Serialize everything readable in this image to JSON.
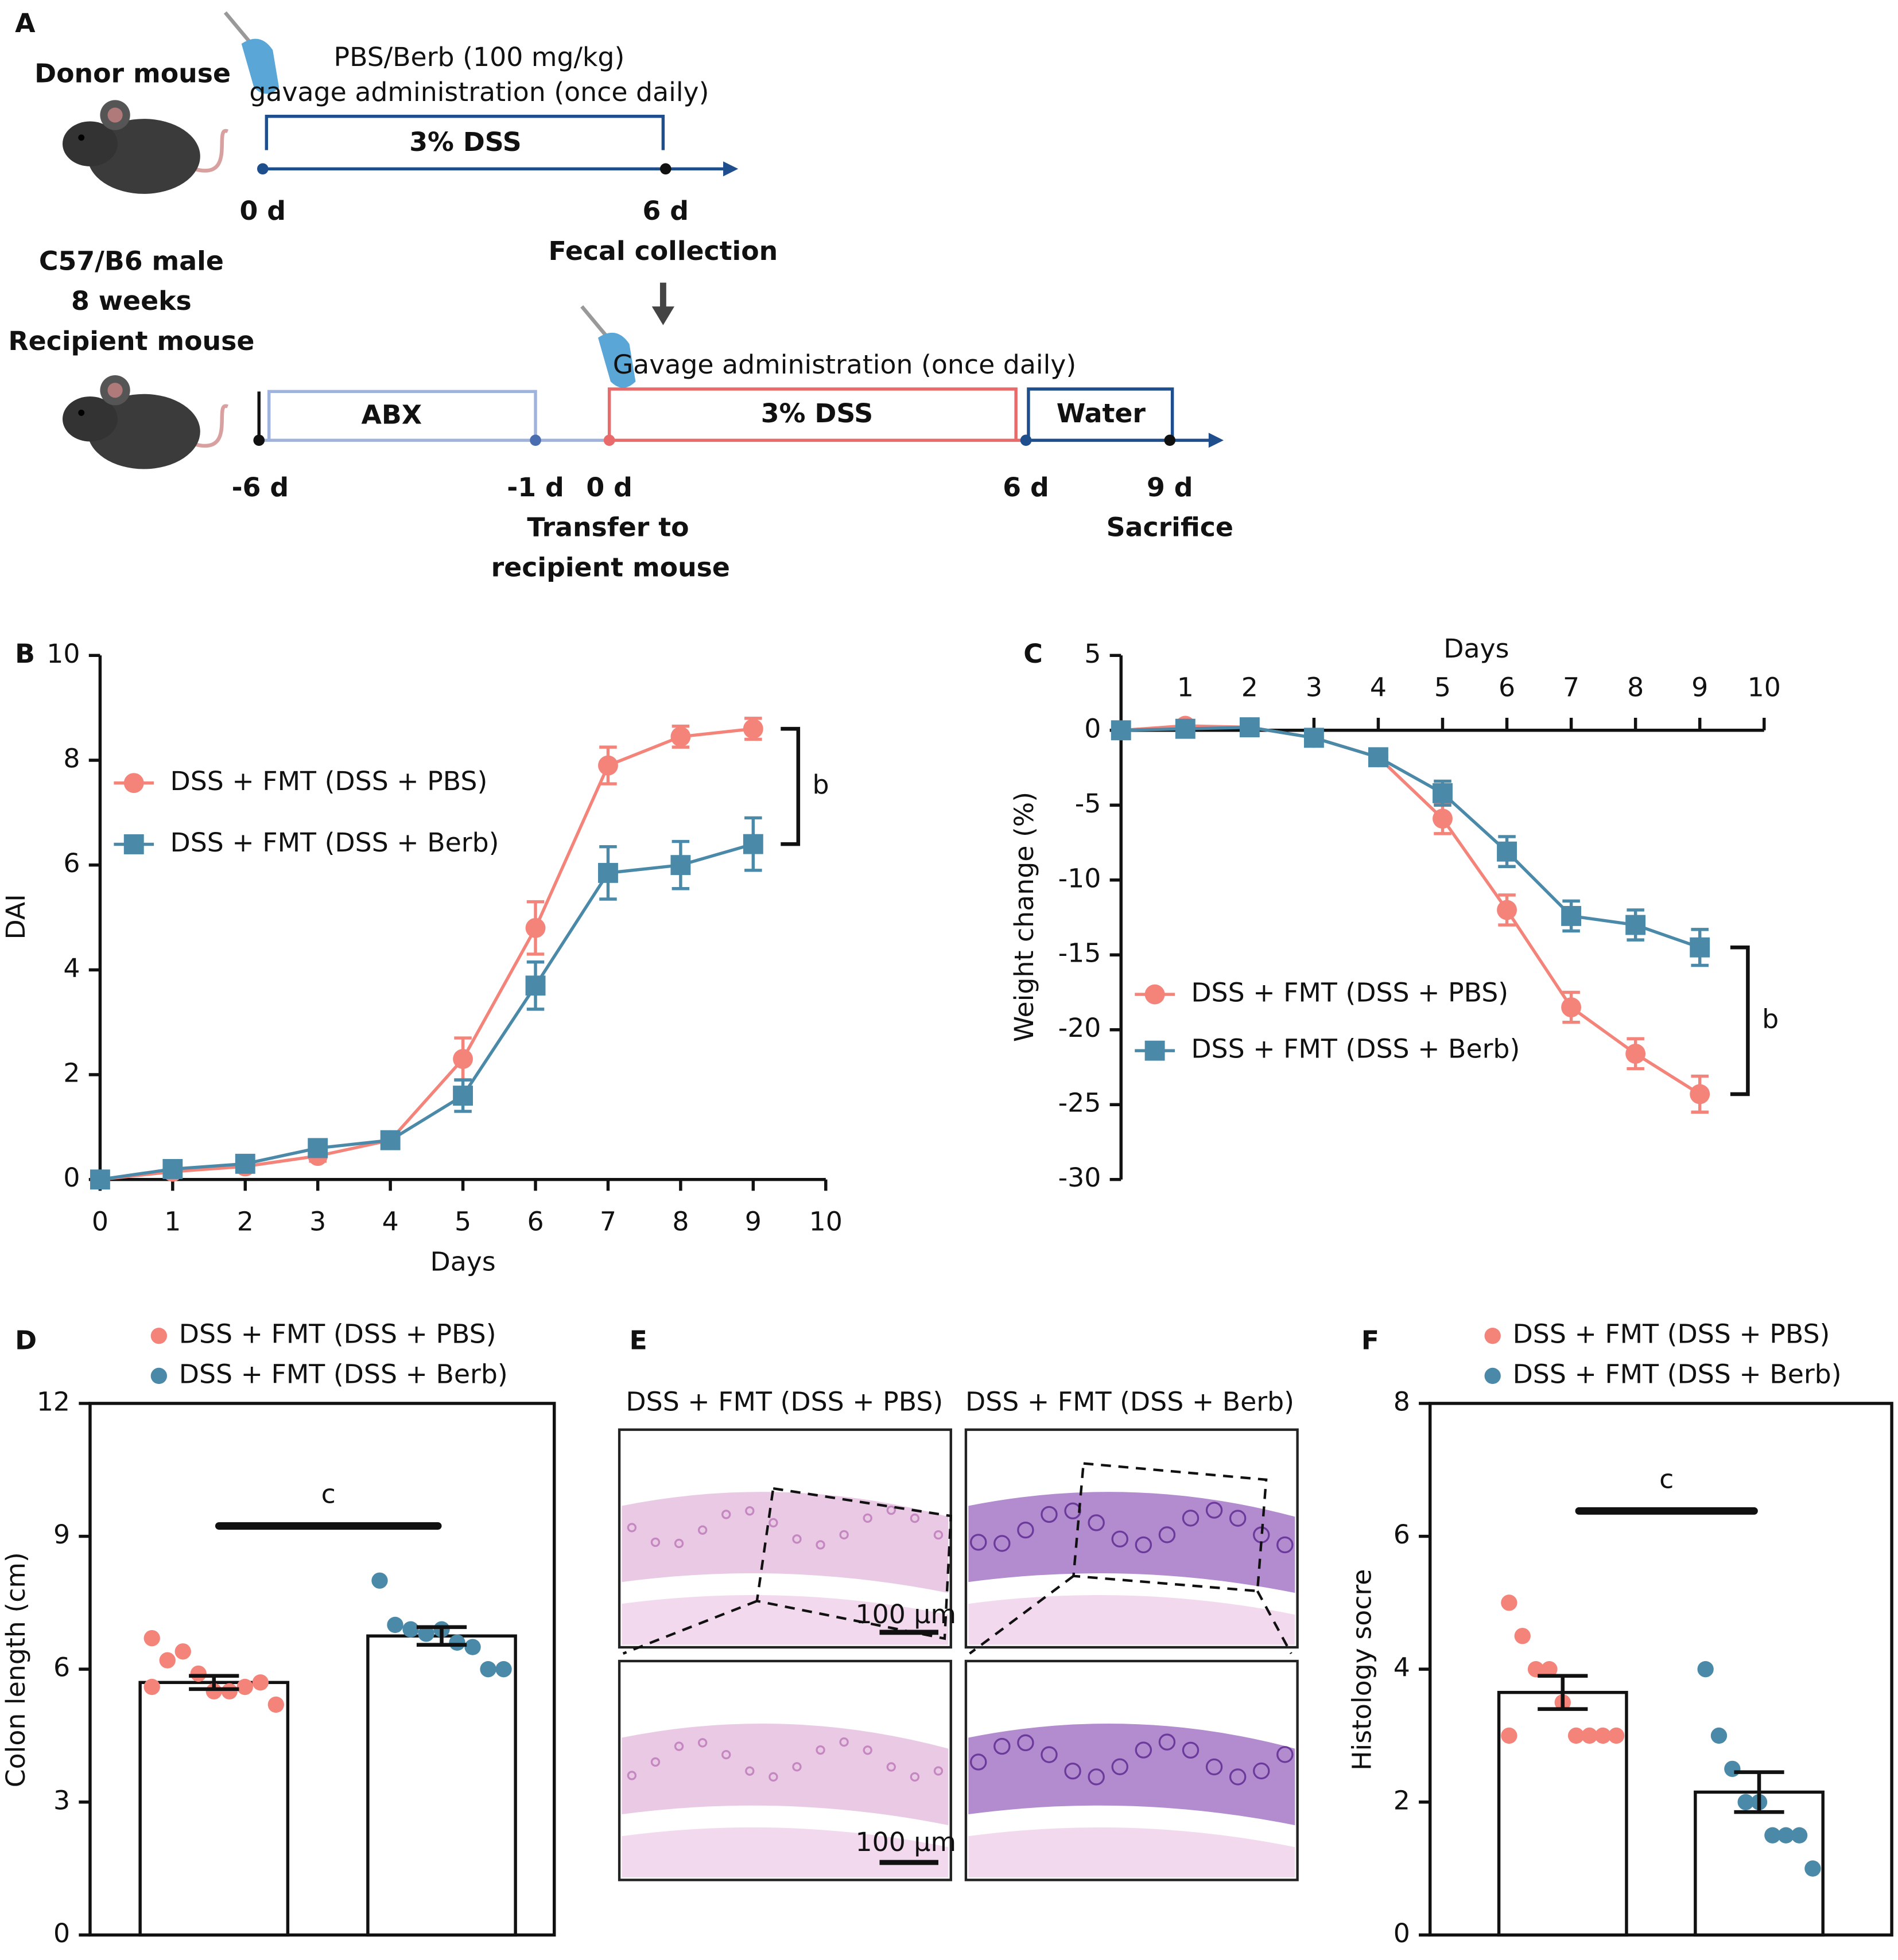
{
  "panels": [
    "A",
    "B",
    "C",
    "D",
    "E",
    "F"
  ],
  "diagram": {
    "donor": "Donor mouse",
    "donor_treatment": [
      "PBS/Berb (100 mg/kg)",
      "gavage administration (once daily)"
    ],
    "donor_dss": "3% DSS",
    "donor_timepoints": [
      "0 d",
      "6 d"
    ],
    "fecal": "Fecal collection",
    "strain": [
      "C57/B6 male",
      "8 weeks"
    ],
    "recipient": "Recipient mouse",
    "recipient_treatment": "Gavage administration (once daily)",
    "abx": "ABX",
    "recipient_dss": "3% DSS",
    "water": "Water",
    "timepoints": [
      "-6 d",
      "-1 d",
      "0 d",
      "6 d",
      "9 d"
    ],
    "transfer": [
      "Transfer to",
      "recipient mouse"
    ],
    "sacrifice": "Sacrifice"
  },
  "histology": {
    "columns": [
      "DSS + FMT (DSS + PBS)",
      "DSS + FMT (DSS + Berb)"
    ],
    "scale_bars": [
      "100 μm",
      "100 μm"
    ]
  },
  "chart_data": [
    {
      "type": "line",
      "xlabel": "Days",
      "ylabel": "DAI",
      "annotation": "b",
      "x": [
        0,
        1,
        2,
        3,
        4,
        5,
        6,
        7,
        8,
        9
      ],
      "xlim": [
        0,
        10
      ],
      "xticks": [
        0,
        1,
        2,
        3,
        4,
        5,
        6,
        7,
        8,
        9,
        10
      ],
      "ylim": [
        0,
        10
      ],
      "yticks": [
        0,
        2,
        4,
        6,
        8,
        10
      ],
      "series": [
        {
          "name": "DSS + FMT (DSS + PBS)",
          "color": "#f4837a",
          "marker": "circle",
          "values": [
            0,
            0.15,
            0.25,
            0.45,
            0.75,
            2.3,
            4.8,
            7.9,
            8.45,
            8.6
          ],
          "errors": [
            0.05,
            0.05,
            0.05,
            0.1,
            0.1,
            0.4,
            0.5,
            0.35,
            0.2,
            0.2
          ]
        },
        {
          "name": "DSS + FMT (DSS + Berb)",
          "color": "#4a89a8",
          "marker": "square",
          "values": [
            0,
            0.2,
            0.3,
            0.6,
            0.75,
            1.6,
            3.7,
            5.85,
            6.0,
            6.4
          ],
          "errors": [
            0.05,
            0.05,
            0.05,
            0.05,
            0.05,
            0.3,
            0.45,
            0.5,
            0.45,
            0.5
          ]
        }
      ]
    },
    {
      "type": "line",
      "xlabel": "Days",
      "ylabel": "Weight change (%)",
      "annotation": "b",
      "x": [
        0,
        1,
        2,
        3,
        4,
        5,
        6,
        7,
        8,
        9
      ],
      "xlim": [
        0,
        10
      ],
      "xticks": [
        1,
        2,
        3,
        4,
        5,
        6,
        7,
        8,
        9,
        10
      ],
      "ylim": [
        -30,
        5
      ],
      "yticks": [
        -30,
        -25,
        -20,
        -15,
        -10,
        -5,
        0,
        5
      ],
      "series": [
        {
          "name": "DSS + FMT (DSS + PBS)",
          "color": "#f4837a",
          "marker": "circle",
          "values": [
            0,
            0.3,
            0.2,
            -0.5,
            -1.8,
            -5.9,
            -12,
            -18.5,
            -21.6,
            -24.3
          ],
          "errors": [
            0.3,
            0.3,
            0.3,
            0.4,
            0.4,
            1,
            1,
            1,
            1,
            1.2
          ]
        },
        {
          "name": "DSS + FMT (DSS + Berb)",
          "color": "#4a89a8",
          "marker": "square",
          "values": [
            0,
            0.1,
            0.2,
            -0.5,
            -1.8,
            -4.2,
            -8.1,
            -12.4,
            -13,
            -14.5
          ],
          "errors": [
            0.3,
            0.3,
            0.3,
            0.4,
            0.4,
            0.8,
            1,
            1,
            1,
            1.2
          ]
        }
      ]
    },
    {
      "type": "bar",
      "ylabel": "Colon length (cm)",
      "annotation": "c",
      "ylim": [
        0,
        12
      ],
      "yticks": [
        0,
        3,
        6,
        9,
        12
      ],
      "series": [
        {
          "name": "DSS + FMT (DSS + PBS)",
          "color": "#f4837a",
          "value": 5.7,
          "error": 0.15,
          "points": [
            6.7,
            6.2,
            6.4,
            5.9,
            5.5,
            5.5,
            5.6,
            5.7,
            5.2,
            5.6
          ]
        },
        {
          "name": "DSS + FMT (DSS + Berb)",
          "color": "#4a89a8",
          "value": 6.75,
          "error": 0.2,
          "points": [
            8.0,
            7.0,
            6.9,
            6.8,
            6.9,
            6.6,
            6.5,
            6.0,
            6.0
          ]
        }
      ]
    },
    {
      "type": "bar",
      "ylabel": "Histology socre",
      "annotation": "c",
      "ylim": [
        0,
        8
      ],
      "yticks": [
        0,
        2,
        4,
        6,
        8
      ],
      "series": [
        {
          "name": "DSS + FMT (DSS + PBS)",
          "color": "#f4837a",
          "value": 3.65,
          "error": 0.25,
          "points": [
            5,
            4.5,
            4,
            4,
            3.5,
            3,
            3,
            3,
            3,
            3
          ]
        },
        {
          "name": "DSS + FMT (DSS + Berb)",
          "color": "#4a89a8",
          "value": 2.15,
          "error": 0.3,
          "points": [
            4,
            3,
            2.5,
            2,
            2,
            1.5,
            1.5,
            1.5,
            1
          ]
        }
      ]
    }
  ]
}
